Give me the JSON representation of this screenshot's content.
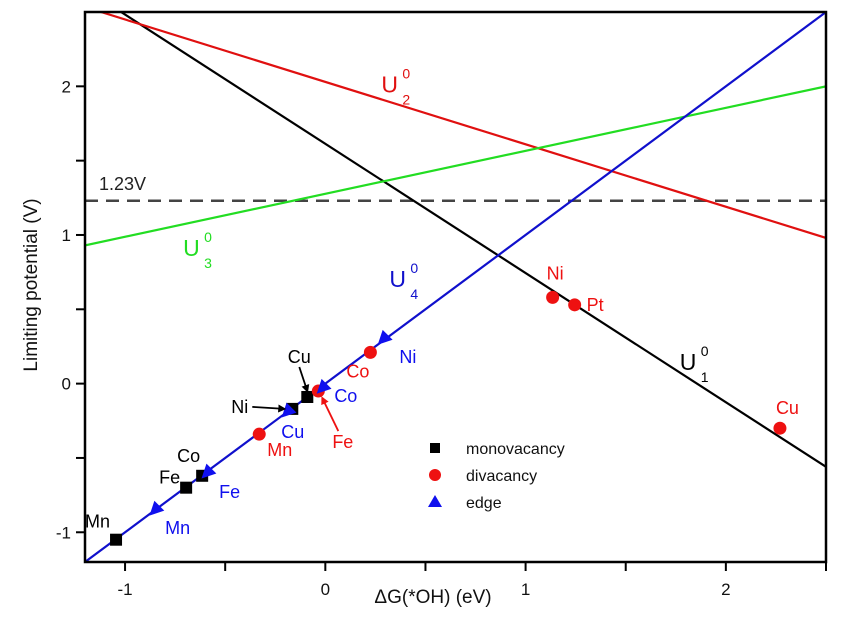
{
  "chart_data": {
    "type": "line",
    "title": "",
    "xlabel": "ΔG(*OH) (eV)",
    "ylabel": "Limiting potential (V)",
    "xlim": [
      -1.2,
      2.5
    ],
    "ylim": [
      -1.2,
      2.5
    ],
    "xticks": [
      {
        "value": -1,
        "label": "-1"
      },
      {
        "value": -0.5,
        "label": ""
      },
      {
        "value": 0,
        "label": "0"
      },
      {
        "value": 0.5,
        "label": ""
      },
      {
        "value": 1,
        "label": "1"
      },
      {
        "value": 1.5,
        "label": ""
      },
      {
        "value": 2,
        "label": "2"
      },
      {
        "value": 2.5,
        "label": ""
      }
    ],
    "yticks": [
      {
        "value": -1,
        "label": "-1"
      },
      {
        "value": -0.5,
        "label": ""
      },
      {
        "value": 0,
        "label": "0"
      },
      {
        "value": 0.5,
        "label": ""
      },
      {
        "value": 1,
        "label": "1"
      },
      {
        "value": 1.5,
        "label": ""
      },
      {
        "value": 2,
        "label": "2"
      }
    ],
    "grid": false,
    "reference_line": {
      "y": 1.23,
      "label": "1.23V",
      "color": "#444444",
      "style": "dashed"
    },
    "lines": [
      {
        "name": "U1",
        "base": "U",
        "sup": "0",
        "sub": "1",
        "color": "#000000",
        "x": [
          -1.02,
          2.5
        ],
        "y": [
          2.5,
          -0.56
        ],
        "label_at": [
          1.77,
          0.09
        ]
      },
      {
        "name": "U2",
        "base": "U",
        "sup": "0",
        "sub": "2",
        "color": "#e01010",
        "x": [
          -1.12,
          2.5
        ],
        "y": [
          2.5,
          0.98
        ],
        "label_at": [
          0.28,
          1.96
        ]
      },
      {
        "name": "U3",
        "base": "U",
        "sup": "0",
        "sub": "3",
        "color": "#22dd22",
        "x": [
          -1.2,
          2.5
        ],
        "y": [
          0.93,
          2.0
        ],
        "label_at": [
          -0.71,
          0.86
        ]
      },
      {
        "name": "U4",
        "base": "U",
        "sup": "0",
        "sub": "4",
        "color": "#1010cc",
        "x": [
          -1.2,
          2.5
        ],
        "y": [
          -1.2,
          2.5
        ],
        "label_at": [
          0.32,
          0.65
        ]
      }
    ],
    "series": [
      {
        "name": "monovacancy",
        "marker": "square",
        "color": "#000000",
        "points": [
          {
            "label": "Mn",
            "x": -1.045,
            "y": -1.05
          },
          {
            "label": "Fe",
            "x": -0.695,
            "y": -0.7
          },
          {
            "label": "Co",
            "x": -0.615,
            "y": -0.62
          },
          {
            "label": "Ni",
            "x": -0.165,
            "y": -0.17
          },
          {
            "label": "Cu",
            "x": -0.09,
            "y": -0.09
          }
        ]
      },
      {
        "name": "divacancy",
        "marker": "circle",
        "color": "#ee1111",
        "points": [
          {
            "label": "Mn",
            "x": -0.33,
            "y": -0.34
          },
          {
            "label": "Fe",
            "x": -0.035,
            "y": -0.05
          },
          {
            "label": "Co",
            "x": 0.225,
            "y": 0.21
          },
          {
            "label": "Ni",
            "x": 1.135,
            "y": 0.58
          },
          {
            "label": "Pt",
            "x": 1.245,
            "y": 0.53
          },
          {
            "label": "Cu",
            "x": 2.27,
            "y": -0.3
          }
        ]
      },
      {
        "name": "edge",
        "marker": "triangle",
        "color": "#1010ee",
        "points": [
          {
            "label": "Mn",
            "x": -0.85,
            "y": -0.85
          },
          {
            "label": "Fe",
            "x": -0.59,
            "y": -0.6
          },
          {
            "label": "Cu",
            "x": -0.19,
            "y": -0.19
          },
          {
            "label": "Co",
            "x": -0.015,
            "y": -0.03
          },
          {
            "label": "Ni",
            "x": 0.29,
            "y": 0.3
          }
        ]
      }
    ],
    "legend": {
      "position": "bottom-center",
      "entries": [
        "monovacancy",
        "divacancy",
        "edge"
      ]
    }
  }
}
